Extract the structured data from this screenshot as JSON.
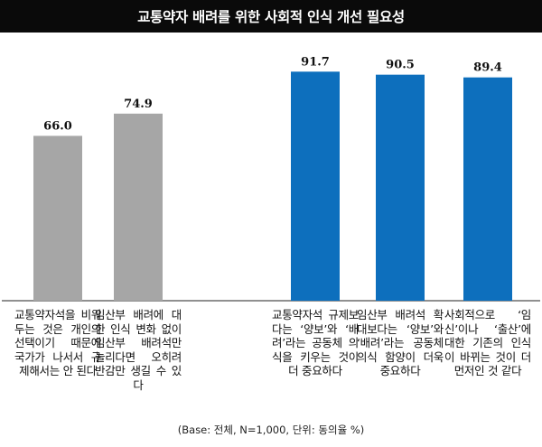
{
  "colors": {
    "title_bg": "#0a0a0a",
    "bar_gray": "#a6a6a6",
    "bar_blue": "#0d6fbd",
    "text": "#111111"
  },
  "chart_data": {
    "type": "bar",
    "title": "교통약자 배려를 위한 사회적 인식 개선 필요성",
    "ylim": [
      0,
      100
    ],
    "grid": false,
    "categories": [
      "교통약자석을 비워두는 것은 개인의 선택이기 때문에 국가가 나서서 규제해서는 안 된다",
      "임산부 배려에 대한 인식 변화 없이 임산부 배려석만 늘리다면 오히려 반감만 생길 수 있다",
      "교통약자석 규제보다는 ‘양보’와 ‘배려’라는 공동체 의식을 키우는 것이 더 중요하다",
      "임산부 배려석 확대보다는 ‘양보’와 ‘배려’라는 공동체 의식 함양이 더욱 중요하다",
      "사회적으로 ‘임신’이나 ‘출산’에 대한 기존의 인식이 바뀌는 것이 더 먼저인 것 같다"
    ],
    "values": [
      66.0,
      74.9,
      91.7,
      90.5,
      89.4
    ],
    "value_labels": [
      "66.0",
      "74.9",
      "91.7",
      "90.5",
      "89.4"
    ],
    "bar_colors": [
      "#a6a6a6",
      "#a6a6a6",
      "#0d6fbd",
      "#0d6fbd",
      "#0d6fbd"
    ]
  },
  "footnote": "(Base: 전체, N=1,000, 단위: 동의율 %)"
}
